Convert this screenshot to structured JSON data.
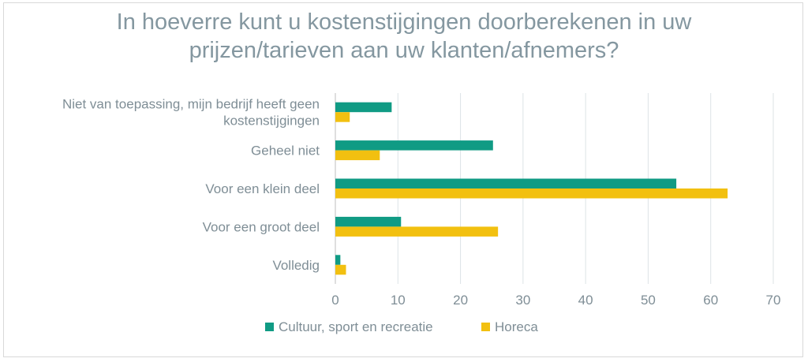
{
  "chart_data": {
    "type": "bar",
    "orientation": "horizontal",
    "title_lines": [
      "In hoeverre kunt u kostenstijgingen doorberekenen in uw",
      "prijzen/tarieven aan uw klanten/afnemers?"
    ],
    "categories": [
      [
        "Niet van toepassing, mijn bedrijf heeft geen",
        "kostenstijgingen"
      ],
      [
        "Geheel niet"
      ],
      [
        "Voor een klein deel"
      ],
      [
        "Voor een groot deel"
      ],
      [
        "Volledig"
      ]
    ],
    "series": [
      {
        "name": "Cultuur, sport en recreatie",
        "color": "#109b84",
        "values": [
          9,
          25.2,
          54.5,
          10.5,
          0.8
        ]
      },
      {
        "name": "Horeca",
        "color": "#f2c010",
        "values": [
          2.3,
          7.1,
          62.7,
          26,
          1.7
        ]
      }
    ],
    "xlim": [
      0,
      70
    ],
    "xticks": [
      "0",
      "10",
      "20",
      "30",
      "40",
      "50",
      "60",
      "70"
    ],
    "grid": true,
    "legend_position": "bottom"
  }
}
